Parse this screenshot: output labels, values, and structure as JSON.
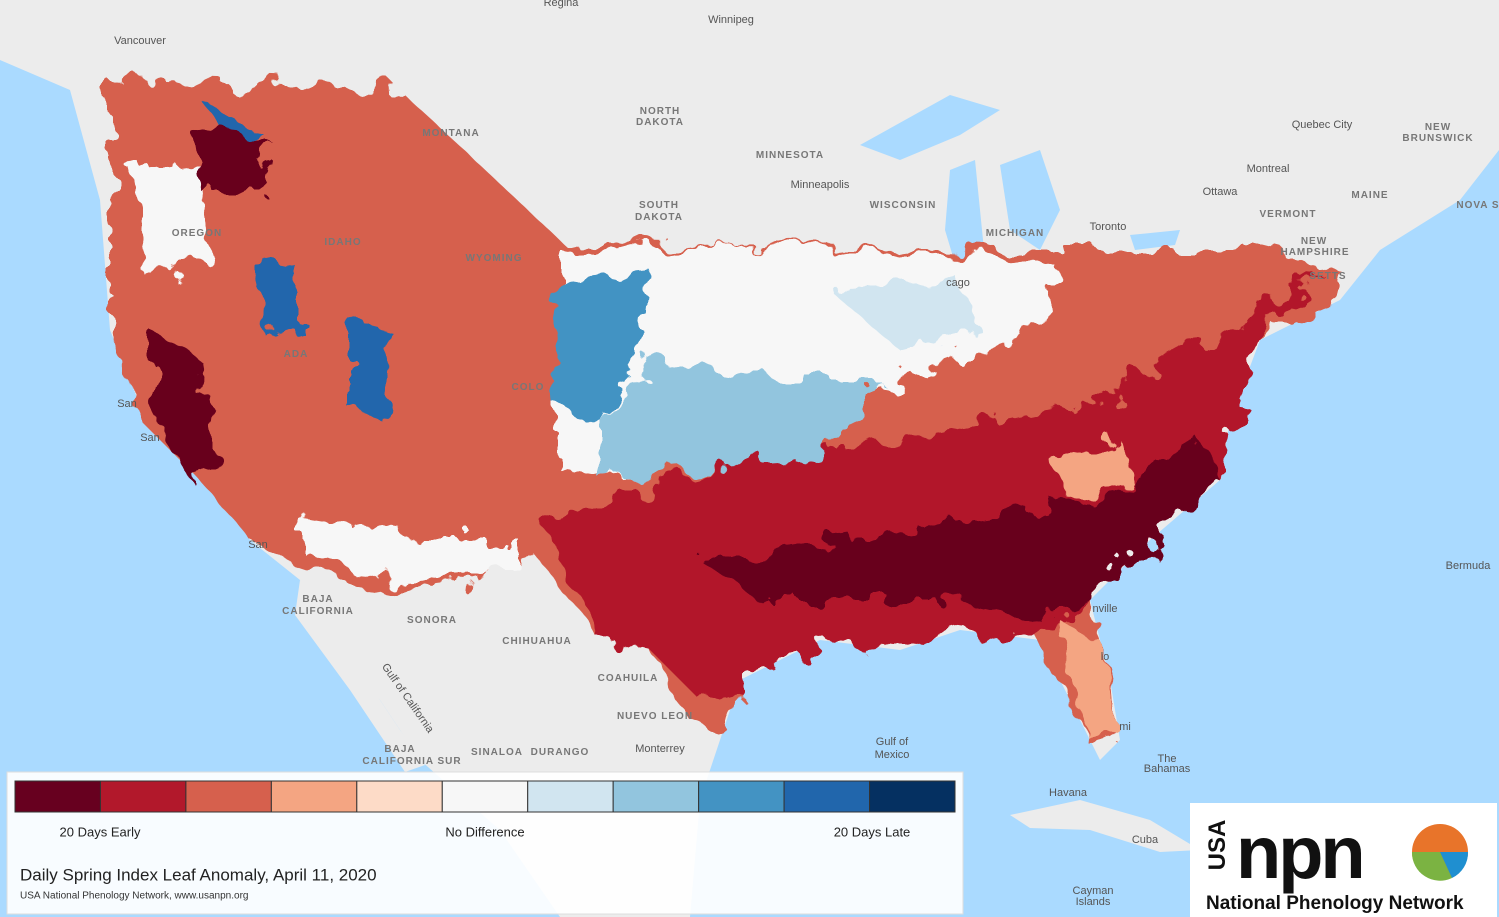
{
  "map": {
    "place_labels": [
      "Regina",
      "Winnipeg",
      "Vancouver",
      "NORTH",
      "DAKOTA",
      "MONTANA",
      "MINNESOTA",
      "Minneapolis",
      "WISCONSIN",
      "MICHIGAN",
      "Toronto",
      "Ottawa",
      "Montreal",
      "Quebec City",
      "NEW",
      "BRUNSWICK",
      "MAINE",
      "NOVA S",
      "VERMONT",
      "NEW",
      "HAMPSHIRE",
      "SETTS",
      "OREGON",
      "IDAHO",
      "WYOMING",
      "SOUTH",
      "DAKOTA",
      "cago",
      "COLO",
      "ADA",
      "San",
      "San",
      "San",
      "Bermuda",
      "BAJA",
      "CALIFORNIA",
      "SONORA",
      "CHIHUAHUA",
      "COAHUILA",
      "NUEVO LEON",
      "Monterrey",
      "SINALOA",
      "DURANGO",
      "BAJA",
      "CALIFORNIA SUR",
      "Gulf of",
      "Mexico",
      "The",
      "Bahamas",
      "Havana",
      "Cuba",
      "Cayman",
      "Islands",
      "nville",
      "lo",
      "mi",
      "Gulf of California",
      "Ottawa"
    ]
  },
  "legend": {
    "colors": [
      "#67001f",
      "#b2182b",
      "#d6604d",
      "#f4a582",
      "#fddbc7",
      "#f7f7f7",
      "#d1e5f0",
      "#92c5de",
      "#4393c3",
      "#2166ac",
      "#053061"
    ],
    "early": "20 Days Early",
    "none": "No Difference",
    "late": "20 Days Late",
    "title": "Daily Spring Index Leaf Anomaly, April 11, 2020",
    "credit": "USA National Phenology Network, www.usanpn.org"
  },
  "logo": {
    "country": "USA",
    "brand": "npn",
    "name": "National Phenology Network"
  }
}
